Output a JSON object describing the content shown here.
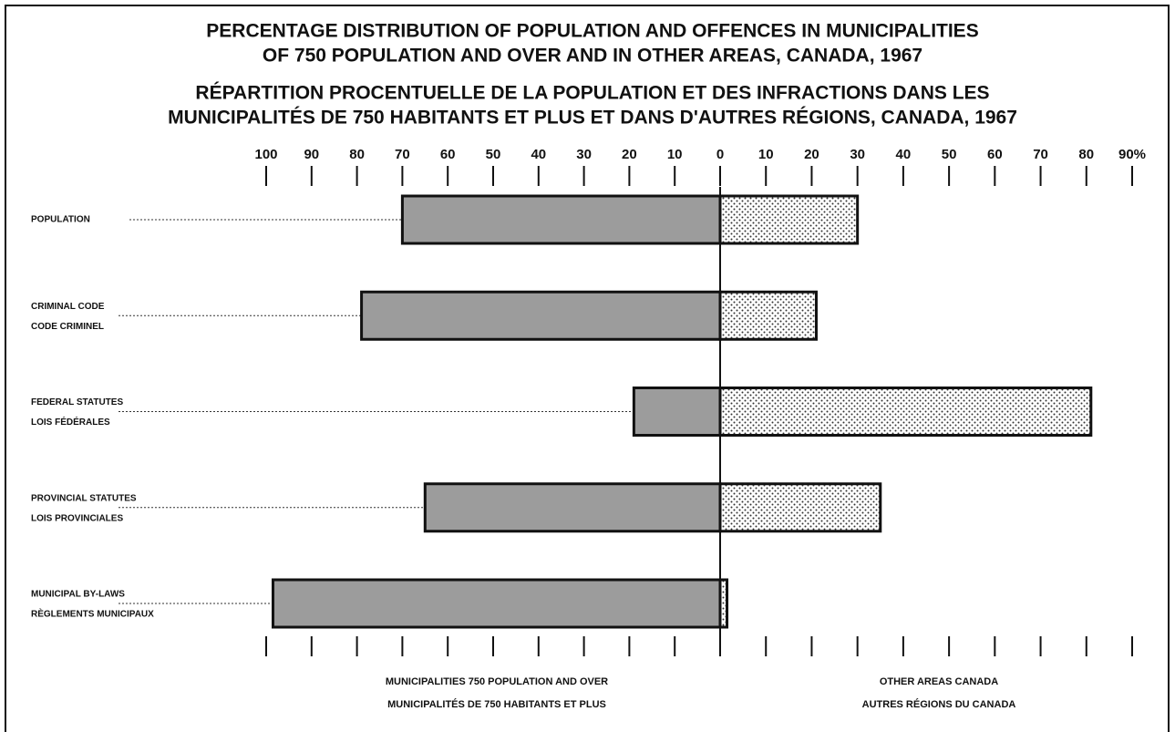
{
  "chart_data": {
    "type": "diverging_bar",
    "title": [
      "PERCENTAGE DISTRIBUTION OF POPULATION AND OFFENCES IN MUNICIPALITIES",
      "OF 750 POPULATION AND OVER AND IN OTHER AREAS, CANADA, 1967"
    ],
    "subtitle": [
      "RÉPARTITION PROCENTUELLE DE LA POPULATION ET DES INFRACTIONS DANS LES",
      "MUNICIPALITÉS DE 750 HABITANTS ET PLUS ET DANS D'AUTRES RÉGIONS, CANADA, 1967"
    ],
    "categories": [
      [
        "POPULATION"
      ],
      [
        "CRIMINAL CODE",
        "CODE CRIMINEL"
      ],
      [
        "FEDERAL STATUTES",
        "LOIS FÉDÉRALES"
      ],
      [
        "PROVINCIAL STATUTES",
        "LOIS PROVINCIALES"
      ],
      [
        "MUNICIPAL BY-LAWS",
        "RÈGLEMENTS MUNICIPAUX"
      ]
    ],
    "series": [
      {
        "name": [
          "MUNICIPALITIES 750 POPULATION AND OVER",
          "MUNICIPALITÉS DE 750 HABITANTS ET PLUS"
        ],
        "color": "#9c9c9c",
        "side": "left",
        "values": [
          70,
          79,
          19,
          65,
          98.5
        ]
      },
      {
        "name": [
          "OTHER AREAS CANADA",
          "AUTRES RÉGIONS DU CANADA"
        ],
        "color": "#ffffff",
        "hatch": "dots",
        "side": "right",
        "values": [
          30,
          21,
          81,
          35,
          1.5
        ]
      }
    ],
    "left_xlim": [
      0,
      100
    ],
    "left_xticks": [
      100,
      90,
      80,
      70,
      60,
      50,
      40,
      30,
      20,
      10
    ],
    "right_xlim": [
      0,
      90
    ],
    "right_xticks": [
      0,
      10,
      20,
      30,
      40,
      50,
      60,
      70,
      80,
      {
        "value": 90,
        "label": "90%"
      }
    ]
  }
}
